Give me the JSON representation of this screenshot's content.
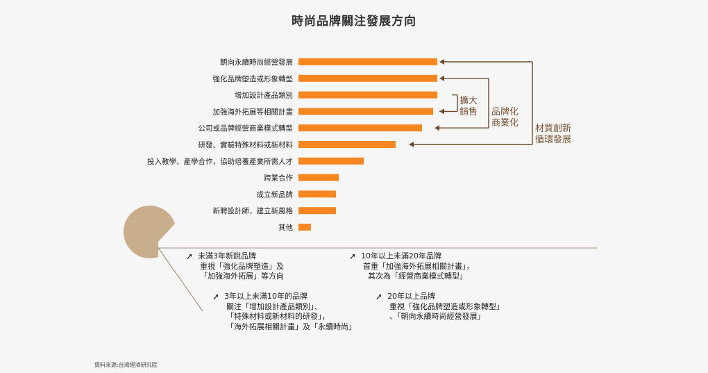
{
  "title": "時尚品牌關注發展方向",
  "source": "資料來源:台灣經濟研究院",
  "colors": {
    "bar": "#f6861f",
    "bracket": "#6b4a2c",
    "pie": "#c8ae8a",
    "text": "#222222"
  },
  "chart_data": {
    "type": "bar",
    "orientation": "horizontal",
    "categories": [
      "朝向永續時尚經營發展",
      "強化品牌塑造或形象轉型",
      "增加設計產品類別",
      "加強海外拓展等相關計畫",
      "公司或品牌經營商業模式轉型",
      "研發、實驗特殊材料或新材料",
      "投入教學、產學合作，協助培養產業所需人才",
      "跨業合作",
      "成立新品牌",
      "新聘設計師，建立新風格",
      "其他"
    ],
    "values": [
      100,
      100,
      100,
      97,
      89,
      70,
      47,
      29,
      27,
      27,
      9
    ],
    "groups": [
      {
        "label_lines": [
          "擴大",
          "銷售"
        ]
      },
      {
        "label_lines": [
          "品牌化",
          "商業化"
        ]
      },
      {
        "label_lines": [
          "材質創新",
          "循環發展"
        ]
      }
    ]
  },
  "notes": [
    {
      "arrow": "➚",
      "lines": [
        "未滿3年新銳品牌",
        "重視「強化品牌塑造」及",
        "「加強海外拓展」等方向"
      ]
    },
    {
      "arrow": "➚",
      "lines": [
        "10年以上未滿20年品牌",
        "首重「加強海外拓展相關計畫」，",
        "  其次為「經營商業模式轉型」"
      ]
    },
    {
      "arrow": "➚",
      "lines": [
        "3年以上未滿10年的品牌",
        "關注「增加設計產品類別」、",
        "「特殊材料或新材料的研發」，",
        "「海外拓展相關計畫」及「永續時尚」"
      ]
    },
    {
      "arrow": "➚",
      "lines": [
        "20年以上品牌",
        "重視「強化品牌塑造或形象轉型」",
        "、「朝向永續時尚經營發展」"
      ]
    }
  ]
}
